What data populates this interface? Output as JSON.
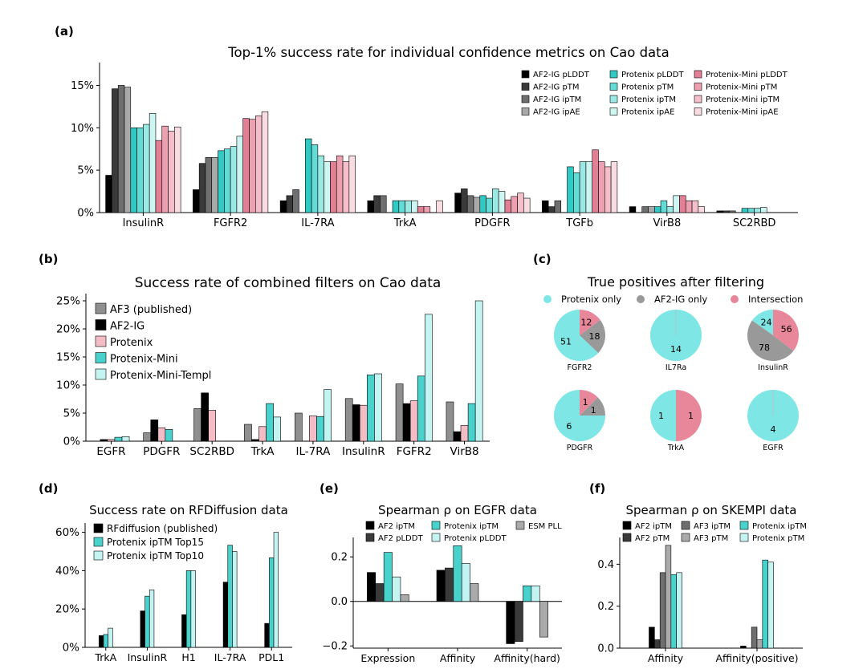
{
  "figure": {
    "panel_labels": [
      "(a)",
      "(b)",
      "(c)",
      "(d)",
      "(e)",
      "(f)"
    ],
    "palette": {
      "af2_shades": [
        "#000000",
        "#3a3a3a",
        "#6f6f6f",
        "#a9a9a9"
      ],
      "protenix_shades": [
        "#30c9c4",
        "#63dcd6",
        "#9be9e4",
        "#cdf5f2"
      ],
      "protenix_mini_shades": [
        "#e37f94",
        "#eda0b0",
        "#f4bfca",
        "#f9dce2"
      ],
      "af3": "#8f8f8f",
      "af2": "#000000",
      "protenix": "#f4bcc4",
      "protenix_mini": "#49d2cc",
      "protenix_mini_templ": "#c4f4f2",
      "pie_protenix_only": "#7ee6e4",
      "pie_af2_only": "#999999",
      "pie_intersection": "#e8869a",
      "esm": "#aaaaaa",
      "af3_ptm": "#aaaaaa"
    }
  },
  "chart_data": [
    {
      "id": "a",
      "type": "bar",
      "title": "Top-1% success rate for individual confidence metrics on Cao data",
      "categories": [
        "InsulinR",
        "FGFR2",
        "IL-7RA",
        "TrkA",
        "PDGFR",
        "TGFb",
        "VirB8",
        "SC2RBD"
      ],
      "ylim": [
        0,
        17.5
      ],
      "yticks": [
        "0%",
        "5%",
        "10%",
        "15%"
      ],
      "ytick_values": [
        0,
        5,
        10,
        15
      ],
      "legend_position": "top-right",
      "series": [
        {
          "name": "AF2-IG pLDDT",
          "values": [
            4.4,
            2.7,
            1.4,
            1.4,
            2.3,
            1.4,
            0.7,
            0.2
          ]
        },
        {
          "name": "AF2-IG pTM",
          "values": [
            14.6,
            5.8,
            2.0,
            2.0,
            2.8,
            0.7,
            0,
            0.2
          ]
        },
        {
          "name": "AF2-IG ipTM",
          "values": [
            15.0,
            6.5,
            2.7,
            2.0,
            2.0,
            1.4,
            0.7,
            0.2
          ]
        },
        {
          "name": "AF2-IG ipAE",
          "values": [
            14.8,
            6.5,
            0,
            0,
            1.8,
            0,
            0.7,
            0
          ]
        },
        {
          "name": "Protenix pLDDT",
          "values": [
            10.0,
            7.3,
            8.7,
            1.4,
            2.0,
            5.4,
            0.7,
            0.5
          ]
        },
        {
          "name": "Protenix pTM",
          "values": [
            10.0,
            7.5,
            8.0,
            1.4,
            1.7,
            4.7,
            1.4,
            0.5
          ]
        },
        {
          "name": "Protenix ipTM",
          "values": [
            10.4,
            7.8,
            6.7,
            1.4,
            2.8,
            6.0,
            0.7,
            0.5
          ]
        },
        {
          "name": "Protenix ipAE",
          "values": [
            11.7,
            9.0,
            6.0,
            1.4,
            2.5,
            6.0,
            2.0,
            0.6
          ]
        },
        {
          "name": "Protenix-Mini pLDDT",
          "values": [
            8.5,
            11.1,
            6.0,
            0.7,
            1.5,
            7.4,
            2.0,
            0
          ]
        },
        {
          "name": "Protenix-Mini pTM",
          "values": [
            10.2,
            11.0,
            6.7,
            0.7,
            1.9,
            6.0,
            1.4,
            0
          ]
        },
        {
          "name": "Protenix-Mini ipTM",
          "values": [
            9.6,
            11.4,
            6.0,
            0,
            2.3,
            5.4,
            1.4,
            0
          ]
        },
        {
          "name": "Protenix-Mini ipAE",
          "values": [
            10.1,
            11.9,
            6.7,
            1.4,
            1.7,
            6.0,
            0.7,
            0
          ]
        }
      ]
    },
    {
      "id": "b",
      "type": "bar",
      "title": "Success rate of combined filters on Cao data",
      "categories": [
        "EGFR",
        "PDGFR",
        "SC2RBD",
        "TrkA",
        "IL-7RA",
        "InsulinR",
        "FGFR2",
        "VirB8"
      ],
      "ylim": [
        0,
        26
      ],
      "yticks": [
        "0%",
        "5%",
        "10%",
        "15%",
        "20%",
        "25%"
      ],
      "ytick_values": [
        0,
        5,
        10,
        15,
        20,
        25
      ],
      "legend_position": "top-left",
      "series": [
        {
          "name": "AF3 (published)",
          "values": [
            0,
            1.5,
            5.8,
            3.0,
            5.0,
            7.6,
            10.2,
            7.0
          ]
        },
        {
          "name": "AF2-IG",
          "values": [
            0.3,
            3.8,
            8.6,
            0.3,
            0,
            6.5,
            6.7,
            1.7
          ]
        },
        {
          "name": "Protenix",
          "values": [
            0.3,
            2.4,
            5.5,
            2.6,
            4.5,
            6.4,
            7.2,
            2.8
          ]
        },
        {
          "name": "Protenix-Mini",
          "values": [
            0.7,
            2.1,
            0,
            6.7,
            4.4,
            11.8,
            11.6,
            6.7
          ]
        },
        {
          "name": "Protenix-Mini-Templ",
          "values": [
            0.8,
            0,
            0,
            4.3,
            9.2,
            12.0,
            22.6,
            25.0
          ]
        }
      ]
    },
    {
      "id": "c",
      "type": "pie",
      "title": "True positives after filtering",
      "legend": [
        "Protenix only",
        "AF2-IG only",
        "Intersection"
      ],
      "legend_position": "top",
      "pies": [
        {
          "label": "FGFR2",
          "values": [
            51,
            18,
            12
          ]
        },
        {
          "label": "IL7Ra",
          "values": [
            14,
            0,
            0
          ]
        },
        {
          "label": "InsulinR",
          "values": [
            24,
            78,
            56
          ]
        },
        {
          "label": "PDGFR",
          "values": [
            6,
            1,
            1
          ]
        },
        {
          "label": "TrkA",
          "values": [
            1,
            0,
            1
          ]
        },
        {
          "label": "EGFR",
          "values": [
            4,
            0,
            0
          ]
        }
      ]
    },
    {
      "id": "d",
      "type": "bar",
      "title": "Success rate on RFDiffusion data",
      "categories": [
        "TrkA",
        "InsulinR",
        "H1",
        "IL-7RA",
        "PDL1"
      ],
      "ylim": [
        0,
        64
      ],
      "yticks": [
        "0%",
        "20%",
        "40%",
        "60%"
      ],
      "ytick_values": [
        0,
        20,
        40,
        60
      ],
      "legend_position": "top-left",
      "series": [
        {
          "name": "RFdiffusion (published)",
          "values": [
            6.1,
            19.0,
            17.0,
            34.0,
            12.5
          ]
        },
        {
          "name": "Protenix ipTM Top15",
          "values": [
            6.7,
            26.7,
            40.0,
            53.3,
            46.7
          ]
        },
        {
          "name": "Protenix ipTM Top10",
          "values": [
            10.0,
            30.0,
            40.0,
            50.0,
            60.0
          ]
        }
      ]
    },
    {
      "id": "e",
      "type": "bar",
      "title": "Spearman ρ on EGFR data",
      "categories": [
        "Expression",
        "Affinity",
        "Affinity(hard)"
      ],
      "ylim": [
        -0.21,
        0.28
      ],
      "yticks": [
        "−0.2",
        "0.0",
        "0.2"
      ],
      "ytick_values": [
        -0.2,
        0.0,
        0.2
      ],
      "legend_position": "top",
      "series": [
        {
          "name": "AF2 ipTM",
          "values": [
            0.13,
            0.14,
            -0.19
          ]
        },
        {
          "name": "AF2 pLDDT",
          "values": [
            0.08,
            0.15,
            -0.18
          ]
        },
        {
          "name": "Protenix ipTM",
          "values": [
            0.22,
            0.25,
            0.07
          ]
        },
        {
          "name": "Protenix pLDDT",
          "values": [
            0.11,
            0.17,
            0.07
          ]
        },
        {
          "name": "ESM PLL",
          "values": [
            0.03,
            0.08,
            -0.16
          ]
        }
      ]
    },
    {
      "id": "f",
      "type": "bar",
      "title": "Spearman ρ on SKEMPI data",
      "categories": [
        "Affinity",
        "Affinity(positive)"
      ],
      "ylim": [
        0,
        0.52
      ],
      "yticks": [
        "0.0",
        "0.2",
        "0.4"
      ],
      "ytick_values": [
        0,
        0.2,
        0.4
      ],
      "legend_position": "top",
      "series": [
        {
          "name": "AF2 ipTM",
          "values": [
            0.1,
            0.01
          ]
        },
        {
          "name": "AF2 pTM",
          "values": [
            0.04,
            0.0
          ]
        },
        {
          "name": "AF3 ipTM",
          "values": [
            0.36,
            0.1
          ]
        },
        {
          "name": "AF3 pTM",
          "values": [
            0.49,
            0.04
          ]
        },
        {
          "name": "Protenix ipTM",
          "values": [
            0.35,
            0.42
          ]
        },
        {
          "name": "Protenix pTM",
          "values": [
            0.36,
            0.41
          ]
        }
      ]
    }
  ]
}
